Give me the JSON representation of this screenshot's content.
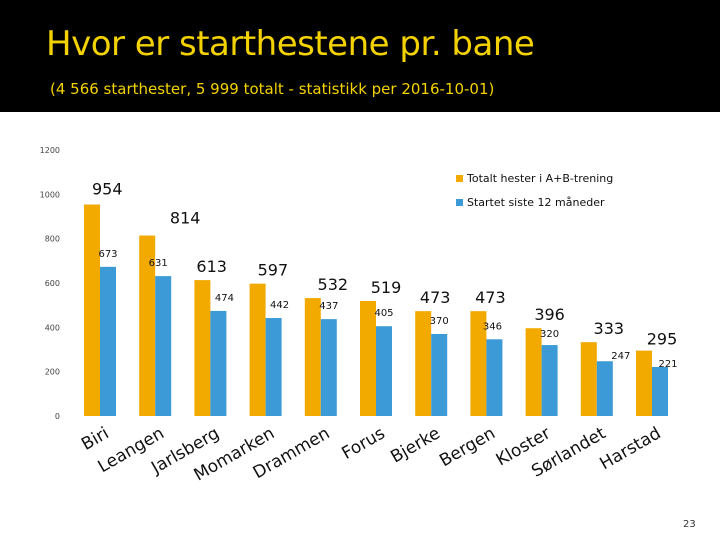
{
  "slide": {
    "title": "Hvor er starthestene pr. bane",
    "subtitle": "(4 566 starthester, 5 999 totalt - statistikk per 2016-10-01)",
    "page_number": "23"
  },
  "colors": {
    "header_bg": "#000000",
    "title": "#f4d200",
    "series_total": "#f2a900",
    "series_started": "#3c9ad6"
  },
  "chart_data": {
    "type": "bar",
    "title": "",
    "xlabel": "",
    "ylabel": "",
    "ylim": [
      0,
      1200
    ],
    "yticks": [
      0,
      200,
      400,
      600,
      800,
      1000,
      1200
    ],
    "grid": false,
    "legend_position": "top-right",
    "categories": [
      "Biri",
      "Leangen",
      "Jarlsberg",
      "Momarken",
      "Drammen",
      "Forus",
      "Bjerke",
      "Bergen",
      "Kloster",
      "Sørlandet",
      "Harstad"
    ],
    "series": [
      {
        "name": "Totalt hester i A+B-trening",
        "values": [
          954,
          814,
          613,
          597,
          532,
          519,
          473,
          473,
          396,
          333,
          295
        ]
      },
      {
        "name": "Startet siste 12 måneder",
        "values": [
          673,
          631,
          474,
          442,
          437,
          405,
          370,
          346,
          320,
          247,
          221
        ]
      }
    ]
  }
}
